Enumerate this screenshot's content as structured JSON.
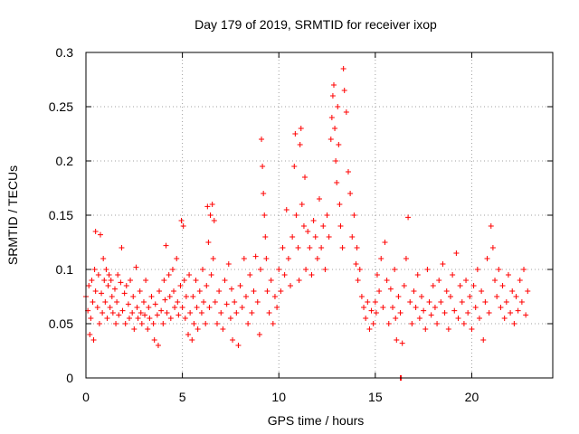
{
  "chart_data": {
    "type": "scatter",
    "title": "Day 179 of 2019, SRMTID for receiver ixop",
    "xlabel": "GPS time / hours",
    "ylabel": "SRMTID / TECUs",
    "xlim": [
      0,
      24.2
    ],
    "ylim": [
      0,
      0.3
    ],
    "x_ticks": [
      0,
      5,
      10,
      15,
      20
    ],
    "y_ticks": [
      0,
      0.05,
      0.1,
      0.15,
      0.2,
      0.25,
      0.3
    ],
    "x_tick_labels": [
      "0",
      "5",
      "10",
      "15",
      "20"
    ],
    "y_tick_labels": [
      "0",
      "0.05",
      "0.1",
      "0.15",
      "0.2",
      "0.25",
      "0.3"
    ],
    "grid": true,
    "marker": "plus",
    "color": "#ff0000",
    "series": [
      {
        "name": "SRMTID",
        "points": [
          [
            0.0,
            0.075
          ],
          [
            0.1,
            0.062
          ],
          [
            0.15,
            0.085
          ],
          [
            0.2,
            0.04
          ],
          [
            0.25,
            0.055
          ],
          [
            0.3,
            0.09
          ],
          [
            0.35,
            0.07
          ],
          [
            0.4,
            0.035
          ],
          [
            0.45,
            0.1
          ],
          [
            0.5,
            0.08
          ],
          [
            0.5,
            0.135
          ],
          [
            0.6,
            0.065
          ],
          [
            0.65,
            0.095
          ],
          [
            0.7,
            0.05
          ],
          [
            0.75,
            0.132
          ],
          [
            0.8,
            0.078
          ],
          [
            0.85,
            0.06
          ],
          [
            0.9,
            0.11
          ],
          [
            0.95,
            0.09
          ],
          [
            1.0,
            0.07
          ],
          [
            1.05,
            0.1
          ],
          [
            1.1,
            0.055
          ],
          [
            1.15,
            0.085
          ],
          [
            1.2,
            0.095
          ],
          [
            1.25,
            0.065
          ],
          [
            1.3,
            0.09
          ],
          [
            1.35,
            0.075
          ],
          [
            1.4,
            0.06
          ],
          [
            1.5,
            0.082
          ],
          [
            1.55,
            0.05
          ],
          [
            1.6,
            0.07
          ],
          [
            1.65,
            0.095
          ],
          [
            1.7,
            0.058
          ],
          [
            1.8,
            0.088
          ],
          [
            1.85,
            0.12
          ],
          [
            1.9,
            0.062
          ],
          [
            2.0,
            0.078
          ],
          [
            2.05,
            0.05
          ],
          [
            2.1,
            0.085
          ],
          [
            2.2,
            0.068
          ],
          [
            2.25,
            0.055
          ],
          [
            2.3,
            0.09
          ],
          [
            2.4,
            0.06
          ],
          [
            2.45,
            0.075
          ],
          [
            2.5,
            0.045
          ],
          [
            2.6,
            0.102
          ],
          [
            2.65,
            0.065
          ],
          [
            2.7,
            0.055
          ],
          [
            2.8,
            0.08
          ],
          [
            2.85,
            0.06
          ],
          [
            2.9,
            0.05
          ],
          [
            3.0,
            0.07
          ],
          [
            3.05,
            0.058
          ],
          [
            3.1,
            0.09
          ],
          [
            3.2,
            0.045
          ],
          [
            3.25,
            0.065
          ],
          [
            3.3,
            0.055
          ],
          [
            3.4,
            0.075
          ],
          [
            3.5,
            0.05
          ],
          [
            3.55,
            0.035
          ],
          [
            3.6,
            0.068
          ],
          [
            3.7,
            0.058
          ],
          [
            3.75,
            0.03
          ],
          [
            3.8,
            0.08
          ],
          [
            3.9,
            0.062
          ],
          [
            4.0,
            0.05
          ],
          [
            4.05,
            0.09
          ],
          [
            4.1,
            0.072
          ],
          [
            4.15,
            0.122
          ],
          [
            4.2,
            0.06
          ],
          [
            4.3,
            0.095
          ],
          [
            4.35,
            0.075
          ],
          [
            4.4,
            0.055
          ],
          [
            4.5,
            0.1
          ],
          [
            4.55,
            0.08
          ],
          [
            4.6,
            0.065
          ],
          [
            4.7,
            0.11
          ],
          [
            4.75,
            0.07
          ],
          [
            4.8,
            0.058
          ],
          [
            4.9,
            0.085
          ],
          [
            4.95,
            0.145
          ],
          [
            5.0,
            0.065
          ],
          [
            5.05,
            0.14
          ],
          [
            5.1,
            0.09
          ],
          [
            5.15,
            0.055
          ],
          [
            5.2,
            0.075
          ],
          [
            5.3,
            0.04
          ],
          [
            5.35,
            0.095
          ],
          [
            5.4,
            0.06
          ],
          [
            5.5,
            0.035
          ],
          [
            5.55,
            0.075
          ],
          [
            5.6,
            0.05
          ],
          [
            5.7,
            0.09
          ],
          [
            5.75,
            0.065
          ],
          [
            5.8,
            0.045
          ],
          [
            5.9,
            0.08
          ],
          [
            6.0,
            0.06
          ],
          [
            6.05,
            0.1
          ],
          [
            6.1,
            0.07
          ],
          [
            6.2,
            0.05
          ],
          [
            6.25,
            0.085
          ],
          [
            6.3,
            0.158
          ],
          [
            6.35,
            0.125
          ],
          [
            6.4,
            0.065
          ],
          [
            6.45,
            0.15
          ],
          [
            6.5,
            0.095
          ],
          [
            6.55,
            0.16
          ],
          [
            6.6,
            0.11
          ],
          [
            6.65,
            0.145
          ],
          [
            6.7,
            0.07
          ],
          [
            6.8,
            0.05
          ],
          [
            6.9,
            0.08
          ],
          [
            7.0,
            0.06
          ],
          [
            7.1,
            0.045
          ],
          [
            7.2,
            0.09
          ],
          [
            7.3,
            0.068
          ],
          [
            7.4,
            0.105
          ],
          [
            7.5,
            0.055
          ],
          [
            7.55,
            0.082
          ],
          [
            7.6,
            0.035
          ],
          [
            7.7,
            0.07
          ],
          [
            7.8,
            0.06
          ],
          [
            7.9,
            0.03
          ],
          [
            8.0,
            0.085
          ],
          [
            8.1,
            0.065
          ],
          [
            8.2,
            0.11
          ],
          [
            8.3,
            0.075
          ],
          [
            8.4,
            0.05
          ],
          [
            8.5,
            0.095
          ],
          [
            8.6,
            0.06
          ],
          [
            8.7,
            0.08
          ],
          [
            8.8,
            0.112
          ],
          [
            8.9,
            0.07
          ],
          [
            9.0,
            0.04
          ],
          [
            9.05,
            0.1
          ],
          [
            9.1,
            0.22
          ],
          [
            9.15,
            0.195
          ],
          [
            9.2,
            0.17
          ],
          [
            9.25,
            0.15
          ],
          [
            9.3,
            0.13
          ],
          [
            9.35,
            0.11
          ],
          [
            9.4,
            0.08
          ],
          [
            9.5,
            0.06
          ],
          [
            9.6,
            0.09
          ],
          [
            9.7,
            0.05
          ],
          [
            9.8,
            0.075
          ],
          [
            9.9,
            0.065
          ],
          [
            10.0,
            0.1
          ],
          [
            10.1,
            0.08
          ],
          [
            10.2,
            0.12
          ],
          [
            10.3,
            0.095
          ],
          [
            10.4,
            0.155
          ],
          [
            10.5,
            0.11
          ],
          [
            10.6,
            0.085
          ],
          [
            10.7,
            0.13
          ],
          [
            10.8,
            0.195
          ],
          [
            10.85,
            0.225
          ],
          [
            10.9,
            0.15
          ],
          [
            11.0,
            0.12
          ],
          [
            11.05,
            0.09
          ],
          [
            11.1,
            0.215
          ],
          [
            11.15,
            0.23
          ],
          [
            11.2,
            0.16
          ],
          [
            11.3,
            0.14
          ],
          [
            11.35,
            0.185
          ],
          [
            11.4,
            0.1
          ],
          [
            11.5,
            0.135
          ],
          [
            11.6,
            0.12
          ],
          [
            11.7,
            0.095
          ],
          [
            11.8,
            0.145
          ],
          [
            11.9,
            0.13
          ],
          [
            12.0,
            0.11
          ],
          [
            12.1,
            0.165
          ],
          [
            12.2,
            0.12
          ],
          [
            12.3,
            0.14
          ],
          [
            12.4,
            0.1
          ],
          [
            12.5,
            0.15
          ],
          [
            12.6,
            0.13
          ],
          [
            12.7,
            0.22
          ],
          [
            12.75,
            0.24
          ],
          [
            12.8,
            0.26
          ],
          [
            12.85,
            0.27
          ],
          [
            12.9,
            0.23
          ],
          [
            12.95,
            0.2
          ],
          [
            13.0,
            0.18
          ],
          [
            13.05,
            0.25
          ],
          [
            13.1,
            0.215
          ],
          [
            13.15,
            0.16
          ],
          [
            13.2,
            0.14
          ],
          [
            13.3,
            0.12
          ],
          [
            13.35,
            0.285
          ],
          [
            13.4,
            0.265
          ],
          [
            13.5,
            0.245
          ],
          [
            13.6,
            0.19
          ],
          [
            13.7,
            0.17
          ],
          [
            13.8,
            0.13
          ],
          [
            13.9,
            0.15
          ],
          [
            14.0,
            0.105
          ],
          [
            14.05,
            0.12
          ],
          [
            14.1,
            0.09
          ],
          [
            14.2,
            0.1
          ],
          [
            14.3,
            0.075
          ],
          [
            14.4,
            0.065
          ],
          [
            14.5,
            0.055
          ],
          [
            14.6,
            0.07
          ],
          [
            14.7,
            0.045
          ],
          [
            14.8,
            0.062
          ],
          [
            14.9,
            0.05
          ],
          [
            15.0,
            0.07
          ],
          [
            15.05,
            0.06
          ],
          [
            15.1,
            0.095
          ],
          [
            15.2,
            0.08
          ],
          [
            15.3,
            0.11
          ],
          [
            15.4,
            0.065
          ],
          [
            15.5,
            0.125
          ],
          [
            15.6,
            0.09
          ],
          [
            15.7,
            0.05
          ],
          [
            15.8,
            0.082
          ],
          [
            15.9,
            0.065
          ],
          [
            16.0,
            0.1
          ],
          [
            16.05,
            0.055
          ],
          [
            16.1,
            0.035
          ],
          [
            16.2,
            0.075
          ],
          [
            16.3,
            0.06
          ],
          [
            16.4,
            0.032
          ],
          [
            16.5,
            0.085
          ],
          [
            16.6,
            0.11
          ],
          [
            16.7,
            0.148
          ],
          [
            16.8,
            0.07
          ],
          [
            16.9,
            0.05
          ],
          [
            17.0,
            0.08
          ],
          [
            17.1,
            0.065
          ],
          [
            17.2,
            0.095
          ],
          [
            17.3,
            0.055
          ],
          [
            17.4,
            0.075
          ],
          [
            17.5,
            0.062
          ],
          [
            17.6,
            0.045
          ],
          [
            17.7,
            0.1
          ],
          [
            17.8,
            0.07
          ],
          [
            17.9,
            0.058
          ],
          [
            18.0,
            0.085
          ],
          [
            18.1,
            0.065
          ],
          [
            18.2,
            0.05
          ],
          [
            18.3,
            0.09
          ],
          [
            18.4,
            0.07
          ],
          [
            18.5,
            0.105
          ],
          [
            18.6,
            0.06
          ],
          [
            18.7,
            0.08
          ],
          [
            18.8,
            0.045
          ],
          [
            18.9,
            0.075
          ],
          [
            19.0,
            0.095
          ],
          [
            19.1,
            0.062
          ],
          [
            19.2,
            0.115
          ],
          [
            19.3,
            0.055
          ],
          [
            19.4,
            0.085
          ],
          [
            19.5,
            0.07
          ],
          [
            19.6,
            0.05
          ],
          [
            19.7,
            0.09
          ],
          [
            19.8,
            0.06
          ],
          [
            19.9,
            0.075
          ],
          [
            20.0,
            0.045
          ],
          [
            20.1,
            0.085
          ],
          [
            20.2,
            0.065
          ],
          [
            20.3,
            0.1
          ],
          [
            20.4,
            0.055
          ],
          [
            20.5,
            0.08
          ],
          [
            20.6,
            0.035
          ],
          [
            20.7,
            0.07
          ],
          [
            20.8,
            0.11
          ],
          [
            20.9,
            0.06
          ],
          [
            21.0,
            0.14
          ],
          [
            21.1,
            0.12
          ],
          [
            21.2,
            0.09
          ],
          [
            21.3,
            0.075
          ],
          [
            21.4,
            0.1
          ],
          [
            21.5,
            0.065
          ],
          [
            21.6,
            0.085
          ],
          [
            21.7,
            0.055
          ],
          [
            21.8,
            0.07
          ],
          [
            21.9,
            0.095
          ],
          [
            22.0,
            0.06
          ],
          [
            22.1,
            0.08
          ],
          [
            22.2,
            0.05
          ],
          [
            22.3,
            0.075
          ],
          [
            22.4,
            0.062
          ],
          [
            22.5,
            0.09
          ],
          [
            22.6,
            0.07
          ],
          [
            22.7,
            0.1
          ],
          [
            22.8,
            0.058
          ],
          [
            22.9,
            0.08
          ],
          [
            16.3,
            0.0
          ],
          [
            16.35,
            0.0
          ]
        ]
      }
    ]
  }
}
